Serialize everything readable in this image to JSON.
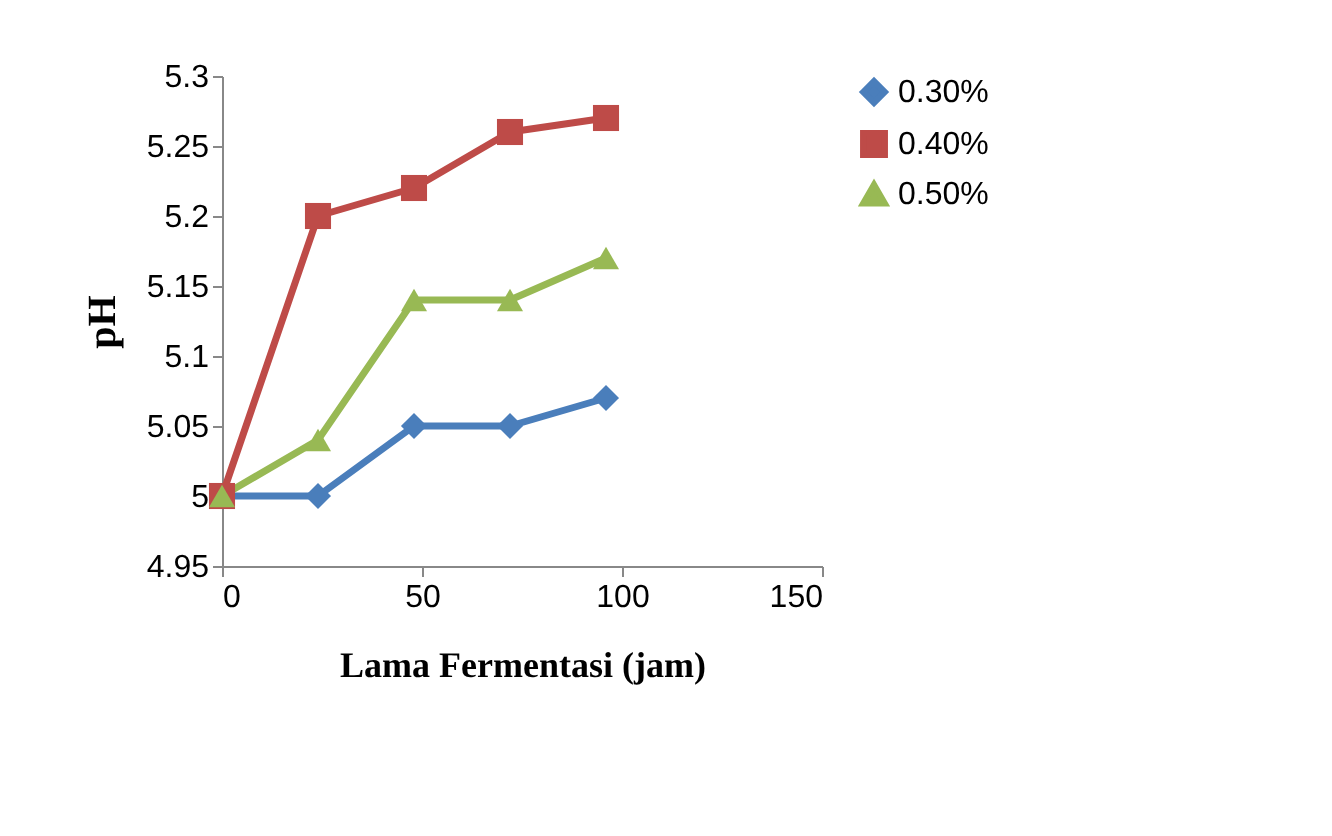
{
  "chart_data": {
    "type": "line",
    "xlabel": "Lama Fermentasi (jam)",
    "ylabel": "pH",
    "x": [
      0,
      24,
      48,
      72,
      96
    ],
    "series": [
      {
        "name": "0.30%",
        "color": "#4a7ebb",
        "marker": "diamond",
        "values": [
          5,
          5,
          5.05,
          5.05,
          5.07
        ]
      },
      {
        "name": "0.40%",
        "color": "#be4b48",
        "marker": "square",
        "values": [
          5,
          5.2,
          5.22,
          5.26,
          5.27
        ]
      },
      {
        "name": "0.50%",
        "color": "#98b954",
        "marker": "triangle",
        "values": [
          5,
          5.04,
          5.14,
          5.14,
          5.17
        ]
      }
    ],
    "xlim": [
      0,
      150
    ],
    "xticks": [
      0,
      50,
      100,
      150
    ],
    "ylim": [
      4.95,
      5.3
    ],
    "yticks": [
      4.95,
      5,
      5.05,
      5.1,
      5.15,
      5.2,
      5.25,
      5.3
    ],
    "grid": false,
    "legend": "right",
    "line_style": "solid"
  }
}
